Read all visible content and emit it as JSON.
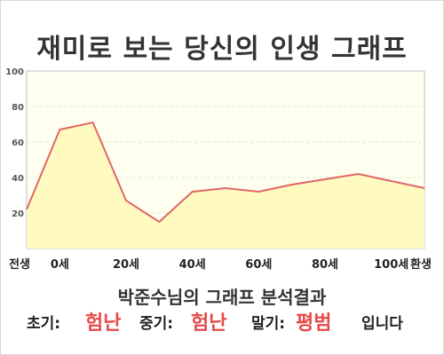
{
  "title": "재미로 보는 당신의 인생 그래프",
  "chart_data": {
    "type": "area",
    "title": "재미로 보는 당신의 인생 그래프",
    "x": [
      "전생",
      "0세",
      "",
      "20세",
      "",
      "40세",
      "",
      "60세",
      "",
      "80세",
      "",
      "100세",
      "환생"
    ],
    "y": [
      22,
      67,
      71,
      27,
      15,
      32,
      34,
      32,
      36,
      39,
      42,
      38,
      34
    ],
    "x_tick_labels": [
      "전생",
      "0세",
      "20세",
      "40세",
      "60세",
      "80세",
      "100세",
      "환생"
    ],
    "y_ticks": [
      20,
      40,
      60,
      80,
      100
    ],
    "ylim": [
      0,
      100
    ],
    "grid": true,
    "line_color": "#e06666",
    "fill_color": "#fffbc0",
    "plot_bg": "#fffff0"
  },
  "summary": {
    "heading": "박준수님의 그래프 분석결과",
    "early_label": "초기:",
    "early_value": "험난",
    "mid_label": "중기:",
    "mid_value": "험난",
    "late_label": "말기:",
    "late_value": "평범",
    "tail": "입니다"
  }
}
